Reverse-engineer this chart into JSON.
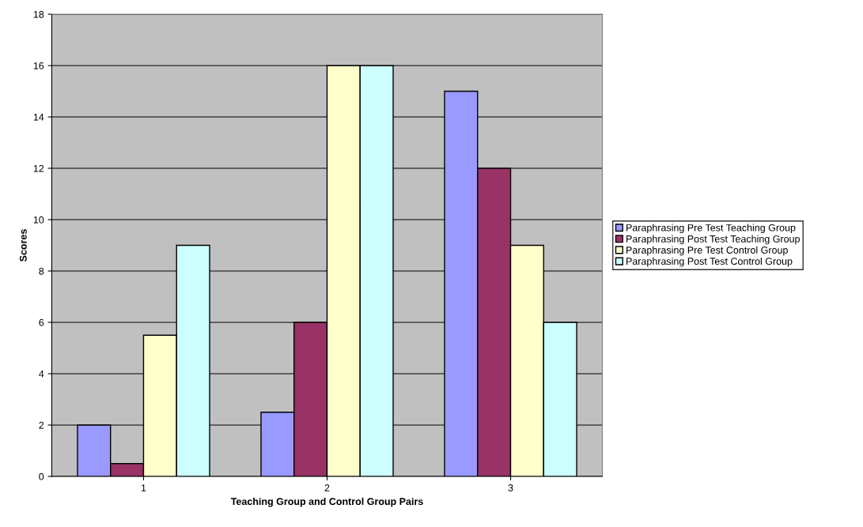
{
  "chart_data": {
    "type": "bar",
    "xlabel": "Teaching Group and Control Group Pairs",
    "ylabel": "Scores",
    "categories": [
      "1",
      "2",
      "3"
    ],
    "series": [
      {
        "name": "Paraphrasing Pre Test Teaching Group",
        "color": "#9999ff",
        "values": [
          2,
          2.5,
          15
        ]
      },
      {
        "name": "Paraphrasing Post Test Teaching Group",
        "color": "#993366",
        "values": [
          0.5,
          6,
          12
        ]
      },
      {
        "name": "Paraphrasing Pre Test Control Group",
        "color": "#ffffcc",
        "values": [
          5.5,
          16,
          9
        ]
      },
      {
        "name": "Paraphrasing Post Test Control Group",
        "color": "#ccffff",
        "values": [
          9,
          16,
          6
        ]
      }
    ],
    "ylim": [
      0,
      18
    ],
    "yticks": [
      0,
      2,
      4,
      6,
      8,
      10,
      12,
      14,
      16,
      18
    ],
    "grid": "y",
    "legend": "right"
  }
}
